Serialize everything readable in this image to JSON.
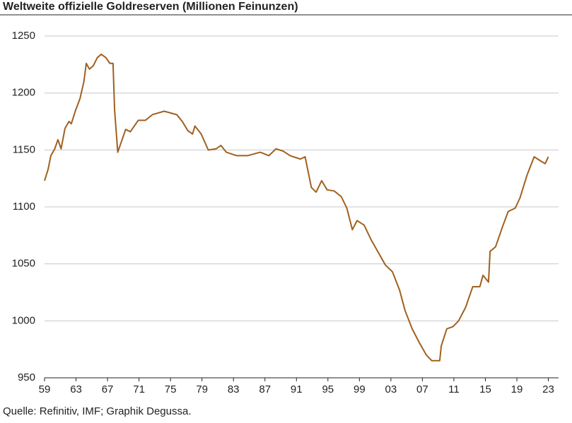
{
  "chart_data": {
    "type": "line",
    "title": "Weltweite offizielle Goldreserven (Millionen Feinunzen)",
    "source": "Quelle: Refinitiv, IMF; Graphik Degussa.",
    "series": [
      {
        "name": "Goldreserven",
        "color": "#a0601f",
        "x": [
          1959.0,
          1959.45,
          1959.8,
          1960.3,
          1960.7,
          1961.1,
          1961.6,
          1962.1,
          1962.4,
          1962.9,
          1963.5,
          1964.0,
          1964.3,
          1964.7,
          1965.2,
          1965.7,
          1966.2,
          1966.8,
          1967.3,
          1967.7,
          1967.9,
          1968.3,
          1968.6,
          1969.3,
          1969.9,
          1970.9,
          1971.8,
          1972.7,
          1974.2,
          1975.8,
          1976.5,
          1977.2,
          1977.8,
          1978.1,
          1978.9,
          1979.8,
          1980.8,
          1981.4,
          1982.1,
          1983.4,
          1984.8,
          1986.4,
          1987.5,
          1988.4,
          1989.3,
          1990.2,
          1991.5,
          1992.1,
          1992.9,
          1993.5,
          1994.2,
          1994.9,
          1995.8,
          1996.7,
          1997.4,
          1998.1,
          1998.7,
          1999.6,
          2000.5,
          2001.4,
          2002.3,
          2003.2,
          2004.1,
          2004.8,
          2005.7,
          2006.6,
          2007.5,
          2008.2,
          2009.2,
          2009.4,
          2010.1,
          2010.9,
          2011.6,
          2012.5,
          2013.4,
          2014.3,
          2014.7,
          2015.4,
          2015.6,
          2016.3,
          2017.2,
          2017.9,
          2018.8,
          2019.4,
          2020.3,
          2021.2,
          2022.1,
          2022.6,
          2023.0
        ],
        "values": [
          1123,
          1133,
          1145,
          1151,
          1159,
          1151,
          1169,
          1175,
          1173,
          1184,
          1195,
          1210,
          1226,
          1221,
          1224,
          1231,
          1234,
          1231,
          1226,
          1226,
          1185,
          1148,
          1154,
          1168,
          1166,
          1176,
          1176,
          1181,
          1184,
          1181,
          1175,
          1167,
          1164,
          1171,
          1164,
          1150,
          1151,
          1154,
          1148,
          1145,
          1145,
          1148,
          1145,
          1151,
          1149,
          1145,
          1142,
          1144,
          1117,
          1113,
          1123,
          1115,
          1114,
          1109,
          1099,
          1080,
          1088,
          1084,
          1071,
          1060,
          1049,
          1043,
          1027,
          1009,
          993,
          981,
          970,
          965,
          965,
          978,
          993,
          995,
          1000,
          1012,
          1030,
          1030,
          1040,
          1034,
          1061,
          1065,
          1083,
          1096,
          1099,
          1108,
          1128,
          1144,
          1140,
          1138,
          1144
        ]
      }
    ],
    "xlim": [
      1959,
      2024.3
    ],
    "xticks": [
      {
        "value": 1959,
        "label": "59"
      },
      {
        "value": 1963,
        "label": "63"
      },
      {
        "value": 1967,
        "label": "67"
      },
      {
        "value": 1971,
        "label": "71"
      },
      {
        "value": 1975,
        "label": "75"
      },
      {
        "value": 1979,
        "label": "79"
      },
      {
        "value": 1983,
        "label": "83"
      },
      {
        "value": 1987,
        "label": "87"
      },
      {
        "value": 1991,
        "label": "91"
      },
      {
        "value": 1995,
        "label": "95"
      },
      {
        "value": 1999,
        "label": "99"
      },
      {
        "value": 2003,
        "label": "03"
      },
      {
        "value": 2007,
        "label": "07"
      },
      {
        "value": 2011,
        "label": "11"
      },
      {
        "value": 2015,
        "label": "15"
      },
      {
        "value": 2019,
        "label": "19"
      },
      {
        "value": 2023,
        "label": "23"
      }
    ],
    "ylim": [
      950,
      1268
    ],
    "yticks": [
      950,
      1000,
      1050,
      1100,
      1150,
      1200,
      1250
    ],
    "grid": true
  }
}
